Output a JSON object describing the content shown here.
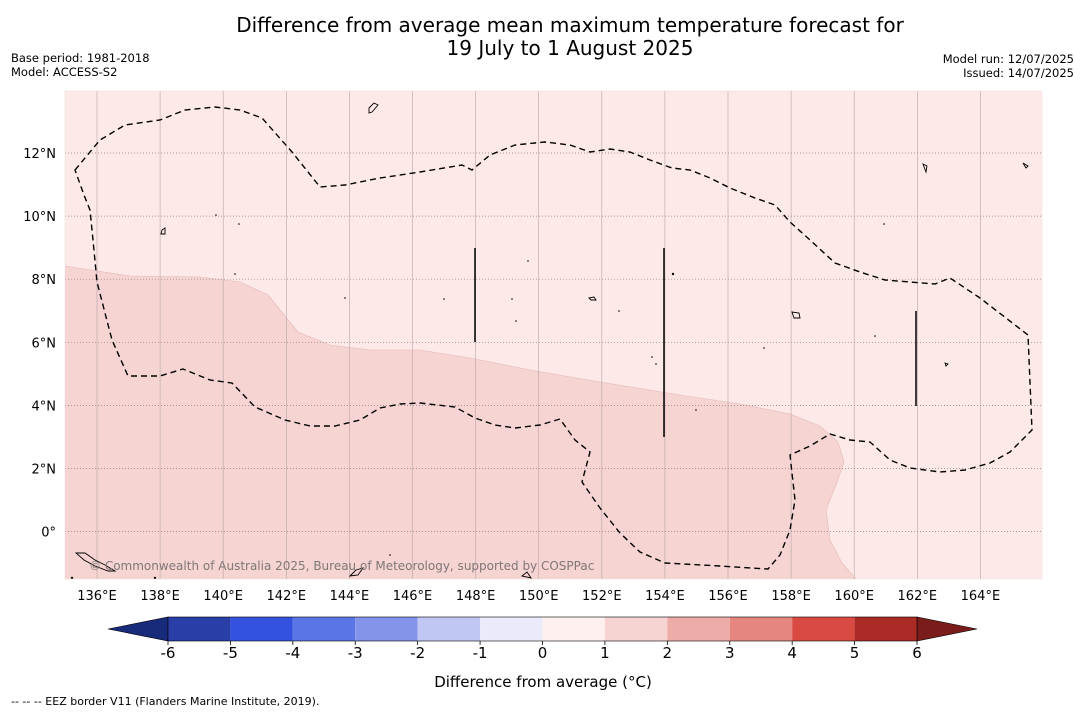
{
  "header": {
    "title_line1": "Difference from average mean maximum temperature forecast for",
    "title_line2": "19 July to 1 August 2025",
    "base_period": "Base period: 1981-2018",
    "model": "Model: ACCESS-S2",
    "model_run": "Model run: 12/07/2025",
    "issued": "Issued: 14/07/2025"
  },
  "map": {
    "lat_labels": [
      "12°N",
      "10°N",
      "8°N",
      "6°N",
      "4°N",
      "2°N",
      "0°"
    ],
    "lon_labels": [
      "136°E",
      "138°E",
      "140°E",
      "142°E",
      "144°E",
      "146°E",
      "148°E",
      "150°E",
      "152°E",
      "154°E",
      "156°E",
      "158°E",
      "160°E",
      "162°E",
      "164°E"
    ],
    "copyright": "© Commonwealth of Australia 2025, Bureau of Meteorology, supported by COSPPac",
    "fill_colors": {
      "background": "#fde9e8",
      "warm_band": "#f5d4d2"
    }
  },
  "colorbar": {
    "ticks": [
      "-6",
      "-5",
      "-4",
      "-3",
      "-2",
      "-1",
      "0",
      "1",
      "2",
      "3",
      "4",
      "5",
      "6"
    ],
    "colors": [
      "#2a3ea8",
      "#3353df",
      "#5a75e6",
      "#8494ea",
      "#c1c7f3",
      "#eaeafa",
      "#fdf0ef",
      "#f5d4d2",
      "#eeaca8",
      "#e68680",
      "#d94a43",
      "#aa2b26"
    ],
    "under_color": "#182a7a",
    "over_color": "#7a1d1a",
    "label": "Difference from average (°C)"
  },
  "footnote": "-- -- -- EEZ border V11 (Flanders Marine Institute, 2019)."
}
